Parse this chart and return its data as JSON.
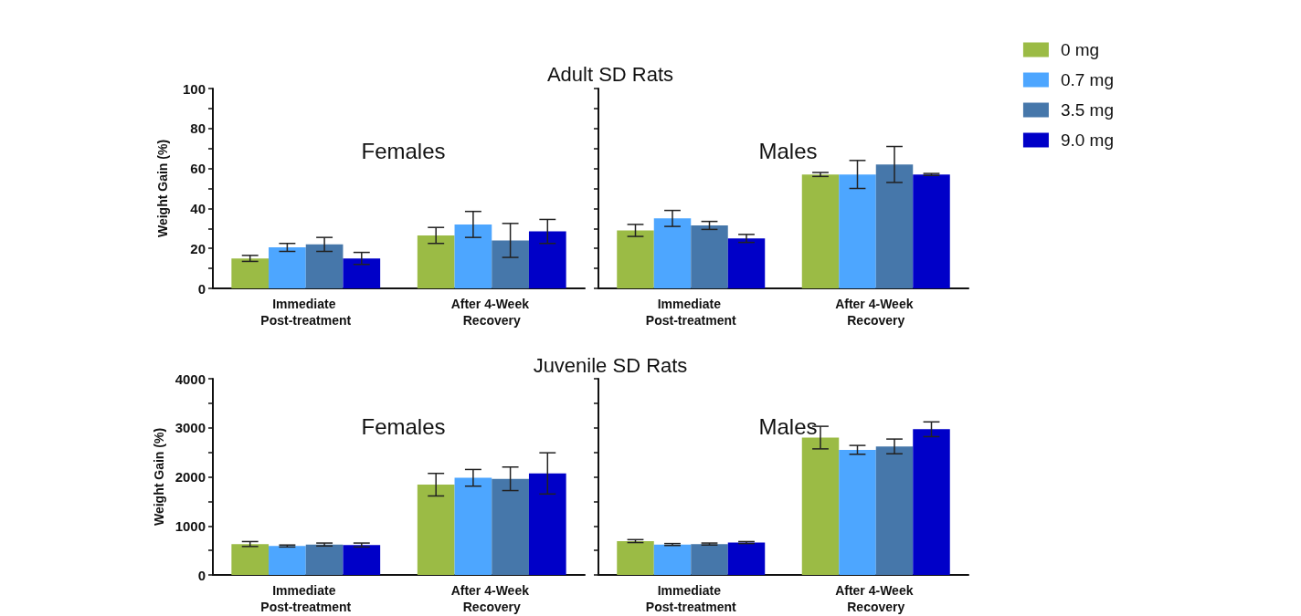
{
  "chart_data": [
    {
      "type": "bar",
      "title": "Females",
      "annotations": [
        "Adult SD Rats"
      ],
      "ylabel": "Weight Gain (%)",
      "categories": [
        "Immediate Post-treatment",
        "After 4-Week Recovery"
      ],
      "series": [
        {
          "color": "#9bbb45",
          "values": [
            15,
            26.5
          ],
          "errors": [
            1.5,
            4
          ]
        },
        {
          "color": "#4da6ff",
          "values": [
            20.5,
            32
          ],
          "errors": [
            2,
            6.5
          ]
        },
        {
          "color": "#4677aa",
          "values": [
            22,
            24
          ],
          "errors": [
            3.5,
            8.5
          ]
        },
        {
          "color": "#0000c8",
          "values": [
            15,
            28.5
          ],
          "errors": [
            3,
            6
          ]
        }
      ],
      "ylim": [
        0,
        100
      ],
      "yticks": [
        0,
        {
          "value": 10,
          "label": null
        },
        20,
        {
          "value": 30,
          "label": null
        },
        40,
        {
          "value": 50,
          "label": null
        },
        60,
        {
          "value": 70,
          "label": null
        },
        80,
        {
          "value": 90,
          "label": null
        },
        100
      ]
    },
    {
      "type": "bar",
      "title": "Males",
      "categories": [
        "Immediate Post-treatment",
        "After 4-Week Recovery"
      ],
      "series": [
        {
          "name": "0 mg",
          "color": "#9bbb45",
          "values": [
            29,
            57
          ],
          "errors": [
            3,
            1
          ]
        },
        {
          "name": "0.7 mg",
          "color": "#4da6ff",
          "values": [
            35,
            57
          ],
          "errors": [
            4,
            7
          ]
        },
        {
          "name": "3.5 mg",
          "color": "#4677aa",
          "values": [
            31.5,
            62
          ],
          "errors": [
            2,
            9
          ]
        },
        {
          "name": "9.0 mg",
          "color": "#0000c8",
          "values": [
            25,
            57
          ],
          "errors": [
            2,
            0.5
          ]
        }
      ],
      "ylim": [
        0,
        100
      ],
      "yticks": [
        0,
        {
          "value": 10,
          "label": null
        },
        20,
        {
          "value": 30,
          "label": null
        },
        40,
        {
          "value": 50,
          "label": null
        },
        60,
        {
          "value": 70,
          "label": null
        },
        80,
        {
          "value": 90,
          "label": null
        },
        100
      ],
      "tick_labels": "x",
      "legend": "right"
    },
    {
      "type": "bar",
      "title": "Females",
      "annotations": [
        "Juvenile SD Rats"
      ],
      "ylabel": "Weight Gain (%)",
      "categories": [
        "Immediate Post-treatment",
        "After 4-Week Recovery"
      ],
      "series": [
        {
          "color": "#9bbb45",
          "values": [
            630,
            1840
          ],
          "errors": [
            50,
            230
          ]
        },
        {
          "color": "#4da6ff",
          "values": [
            590,
            1980
          ],
          "errors": [
            20,
            170
          ]
        },
        {
          "color": "#4677aa",
          "values": [
            620,
            1960
          ],
          "errors": [
            30,
            240
          ]
        },
        {
          "color": "#0000c8",
          "values": [
            610,
            2070
          ],
          "errors": [
            40,
            420
          ]
        }
      ],
      "ylim": [
        0,
        4000
      ],
      "yticks": [
        0,
        {
          "value": 500,
          "label": null
        },
        1000,
        {
          "value": 1500,
          "label": null
        },
        2000,
        {
          "value": 2500,
          "label": null
        },
        3000,
        {
          "value": 3500,
          "label": null
        },
        4000
      ]
    },
    {
      "type": "bar",
      "title": "Males",
      "categories": [
        "Immediate Post-treatment",
        "After 4-Week Recovery"
      ],
      "series": [
        {
          "color": "#9bbb45",
          "values": [
            690,
            2800
          ],
          "errors": [
            30,
            230
          ]
        },
        {
          "color": "#4da6ff",
          "values": [
            620,
            2550
          ],
          "errors": [
            20,
            90
          ]
        },
        {
          "color": "#4677aa",
          "values": [
            630,
            2620
          ],
          "errors": [
            20,
            150
          ]
        },
        {
          "color": "#0000c8",
          "values": [
            660,
            2970
          ],
          "errors": [
            20,
            150
          ]
        }
      ],
      "ylim": [
        0,
        4000
      ],
      "yticks": [
        0,
        {
          "value": 500,
          "label": null
        },
        1000,
        {
          "value": 1500,
          "label": null
        },
        2000,
        {
          "value": 2500,
          "label": null
        },
        3000,
        {
          "value": 3500,
          "label": null
        },
        4000
      ],
      "tick_labels": "x"
    }
  ]
}
